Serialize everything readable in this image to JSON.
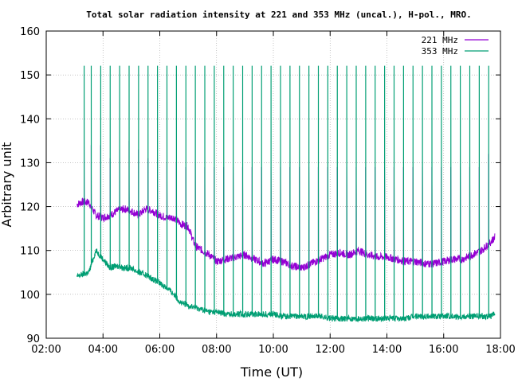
{
  "chart_data": {
    "type": "line",
    "title": "Total solar radiation intensity at 221 and 353 MHz (uncal.), H-pol., MRO.",
    "xlabel": "Time (UT)",
    "ylabel": "Arbitrary unit",
    "xlim": [
      "02:00",
      "18:00"
    ],
    "ylim": [
      90,
      160
    ],
    "xticks": [
      "02:00",
      "04:00",
      "06:00",
      "08:00",
      "10:00",
      "12:00",
      "14:00",
      "16:00",
      "18:00"
    ],
    "yticks": [
      90,
      100,
      110,
      120,
      130,
      140,
      150,
      160
    ],
    "grid": true,
    "legend_position": "top-right",
    "calibration_spikes": {
      "x": [
        "03:20",
        "03:35",
        "03:55",
        "04:15",
        "04:35",
        "04:55",
        "05:15",
        "05:35",
        "05:55",
        "06:15",
        "06:35",
        "06:55",
        "07:15",
        "07:35",
        "07:55",
        "08:15",
        "08:35",
        "08:55",
        "09:15",
        "09:35",
        "09:55",
        "10:15",
        "10:35",
        "10:55",
        "11:15",
        "11:35",
        "11:55",
        "12:15",
        "12:35",
        "12:55",
        "13:15",
        "13:35",
        "13:55",
        "14:15",
        "14:35",
        "14:55",
        "15:15",
        "15:35",
        "15:55",
        "16:15",
        "16:35",
        "16:55",
        "17:15",
        "17:35"
      ],
      "peak_353": 152,
      "plateau_221": [
        135,
        134,
        134,
        131,
        133,
        135,
        133,
        131,
        131,
        130,
        130,
        129,
        130,
        129,
        129,
        129,
        129,
        129,
        129,
        129,
        129,
        129,
        129,
        129,
        129,
        129,
        129,
        129,
        129,
        129,
        129,
        129,
        129,
        129,
        129,
        129,
        129,
        129,
        129,
        129,
        129,
        129,
        129,
        132
      ],
      "low_221": 123
    },
    "series": [
      {
        "name": "221 MHz",
        "color": "#9400d3",
        "x": [
          "03:05",
          "03:15",
          "03:30",
          "03:45",
          "04:00",
          "04:15",
          "04:30",
          "04:45",
          "05:00",
          "05:15",
          "05:30",
          "05:45",
          "06:00",
          "06:15",
          "06:30",
          "06:45",
          "07:00",
          "07:15",
          "07:30",
          "07:45",
          "08:00",
          "08:20",
          "08:40",
          "09:00",
          "09:20",
          "09:40",
          "10:00",
          "10:20",
          "10:40",
          "11:00",
          "11:20",
          "11:40",
          "12:00",
          "12:20",
          "12:40",
          "13:00",
          "13:20",
          "13:40",
          "14:00",
          "14:20",
          "14:40",
          "15:00",
          "15:20",
          "15:40",
          "16:00",
          "16:20",
          "16:40",
          "17:00",
          "17:20",
          "17:40",
          "17:48"
        ],
        "values": [
          120.5,
          121,
          121,
          118,
          117.5,
          118,
          119,
          119.5,
          119,
          118,
          119.5,
          119,
          118,
          117.5,
          117.5,
          116,
          115.5,
          111,
          110,
          109,
          107.5,
          108,
          108.5,
          109,
          108,
          107,
          108,
          107.5,
          106.5,
          106,
          107,
          108,
          109,
          109.5,
          109,
          110,
          109,
          108.5,
          108.5,
          108,
          107.5,
          107.5,
          107,
          107,
          107.5,
          108,
          108,
          109,
          110,
          112,
          113
        ]
      },
      {
        "name": "353 MHz",
        "color": "#009e73",
        "x": [
          "03:05",
          "03:15",
          "03:30",
          "03:45",
          "04:00",
          "04:15",
          "04:30",
          "04:45",
          "05:00",
          "05:15",
          "05:30",
          "05:45",
          "06:00",
          "06:15",
          "06:30",
          "06:45",
          "07:00",
          "07:15",
          "07:30",
          "07:45",
          "08:00",
          "08:20",
          "08:40",
          "09:00",
          "09:20",
          "09:40",
          "10:00",
          "10:20",
          "10:40",
          "11:00",
          "11:20",
          "11:40",
          "12:00",
          "12:20",
          "12:40",
          "13:00",
          "13:20",
          "13:40",
          "14:00",
          "14:20",
          "14:40",
          "15:00",
          "15:20",
          "15:40",
          "16:00",
          "16:20",
          "16:40",
          "17:00",
          "17:20",
          "17:40",
          "17:48"
        ],
        "values": [
          104,
          104.5,
          105,
          110,
          108,
          106,
          106.5,
          106,
          106,
          105,
          104.5,
          103.5,
          102.5,
          101.5,
          100,
          98,
          97.5,
          97,
          96.5,
          96,
          96,
          95.5,
          95.5,
          95.5,
          95.5,
          95.5,
          95.5,
          95,
          95,
          95,
          95,
          95,
          94.5,
          94.5,
          94.5,
          94.5,
          94.5,
          94.5,
          94.5,
          94.5,
          94.5,
          95,
          95,
          95,
          95,
          95,
          95,
          95,
          95,
          95,
          95.5
        ]
      }
    ]
  }
}
